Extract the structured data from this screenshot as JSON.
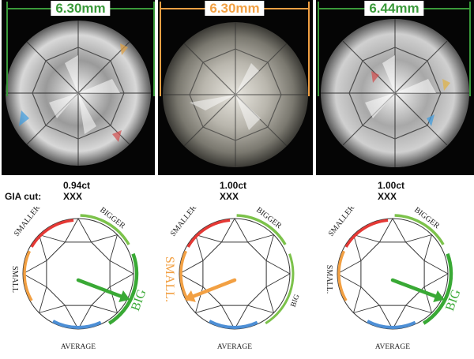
{
  "labels": {
    "gia_cut": "GIA cut:"
  },
  "colors": {
    "green": "#39a935",
    "orange": "#f2a043",
    "red": "#e53935",
    "blue": "#4d8fd6",
    "bigger_green": "#7cc24b"
  },
  "diamonds": [
    {
      "measurement": "6.30mm",
      "carat": "0.94ct",
      "cut_grade": "XXX",
      "measure_color": "#3a9a3a",
      "gauge_labels": {
        "smaller": "SMALLER",
        "bigger": "BIGGER",
        "small": "SMALL",
        "average": "AVERAGE",
        "big": "BIG"
      },
      "indicator": "big",
      "arrow_color": "#39a935"
    },
    {
      "measurement": "6.30mm",
      "carat": "1.00ct",
      "cut_grade": "XXX",
      "measure_color": "#f2a043",
      "gauge_labels": {
        "smaller": "SMALLER",
        "bigger": "BIGGER",
        "small": "SMALL.",
        "average": "AVERAGE",
        "big": "BIG"
      },
      "indicator": "small",
      "arrow_color": "#f2a043"
    },
    {
      "measurement": "6.44mm",
      "carat": "1.00ct",
      "cut_grade": "XXX",
      "measure_color": "#3a9a3a",
      "gauge_labels": {
        "smaller": "SMALLER",
        "bigger": "BIGGER",
        "small": "SMALL.",
        "average": "AVERAGE",
        "big": "BIG"
      },
      "indicator": "big",
      "arrow_color": "#39a935"
    }
  ]
}
